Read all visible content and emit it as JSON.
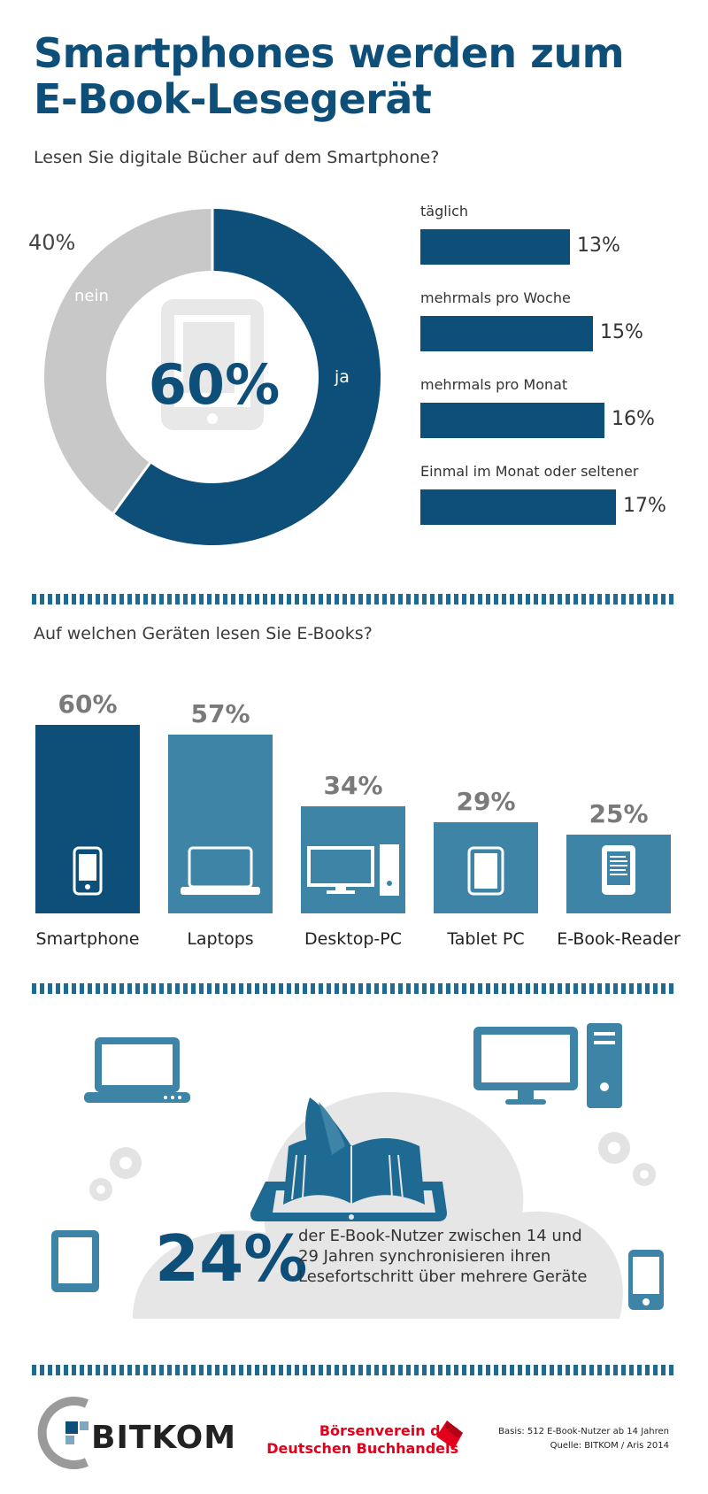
{
  "title": {
    "line1": "Smartphones werden zum",
    "line2": "E-Book-Lesegerät"
  },
  "section1": {
    "question": "Lesen Sie digitale Bücher auf dem Smartphone?",
    "donut": {
      "yes_label": "ja",
      "no_label": "nein",
      "yes_value": 60,
      "no_value": 40,
      "center_text": "60%",
      "no_text": "40%"
    },
    "frequency": [
      {
        "label": "täglich",
        "value": 13,
        "text": "13%"
      },
      {
        "label": "mehrmals pro Woche",
        "value": 15,
        "text": "15%"
      },
      {
        "label": "mehrmals pro Monat",
        "value": 16,
        "text": "16%"
      },
      {
        "label": "Einmal im Monat oder seltener",
        "value": 17,
        "text": "17%"
      }
    ]
  },
  "section2": {
    "question": "Auf welchen Geräten lesen Sie E-Books?",
    "devices": [
      {
        "name": "Smartphone",
        "value": 60,
        "text": "60%",
        "icon": "smartphone-icon",
        "color": "#0d4f78"
      },
      {
        "name": "Laptops",
        "value": 57,
        "text": "57%",
        "icon": "laptop-icon",
        "color": "#3e84a6"
      },
      {
        "name": "Desktop-PC",
        "value": 34,
        "text": "34%",
        "icon": "desktop-icon",
        "color": "#3e84a6"
      },
      {
        "name": "Tablet PC",
        "value": 29,
        "text": "29%",
        "icon": "tablet-icon",
        "color": "#3e84a6"
      },
      {
        "name": "E-Book-Reader",
        "value": 25,
        "text": "25%",
        "icon": "ebook-reader-icon",
        "color": "#3e84a6"
      }
    ]
  },
  "section3": {
    "number": "24%",
    "text": "der E-Book-Nutzer zwischen 14 und 29 Jahren synchronisieren ihren Lesefortschritt über mehrere Geräte"
  },
  "footer": {
    "bitkom": "BITKOM",
    "boersenverein_line1": "Börsenverein des",
    "boersenverein_line2": "Deutschen Buchhandels",
    "basis": "Basis: 512 E-Book-Nutzer ab 14 Jahren",
    "source": "Quelle: BITKOM / Aris 2014"
  },
  "colors": {
    "dark_blue": "#0d4f78",
    "mid_blue": "#3e84a6",
    "grey": "#c8c8c8",
    "red": "#e2001a"
  },
  "chart_data": [
    {
      "type": "pie",
      "categories": [
        "ja",
        "nein"
      ],
      "values": [
        60,
        40
      ]
    },
    {
      "type": "bar",
      "categories": [
        "täglich",
        "mehrmals pro Woche",
        "mehrmals pro Monat",
        "Einmal im Monat oder seltener"
      ],
      "values": [
        13,
        15,
        16,
        17
      ]
    },
    {
      "type": "bar",
      "title": "Auf welchen Geräten lesen Sie E-Books?",
      "categories": [
        "Smartphone",
        "Laptops",
        "Desktop-PC",
        "Tablet PC",
        "E-Book-Reader"
      ],
      "values": [
        60,
        57,
        34,
        29,
        25
      ]
    }
  ]
}
